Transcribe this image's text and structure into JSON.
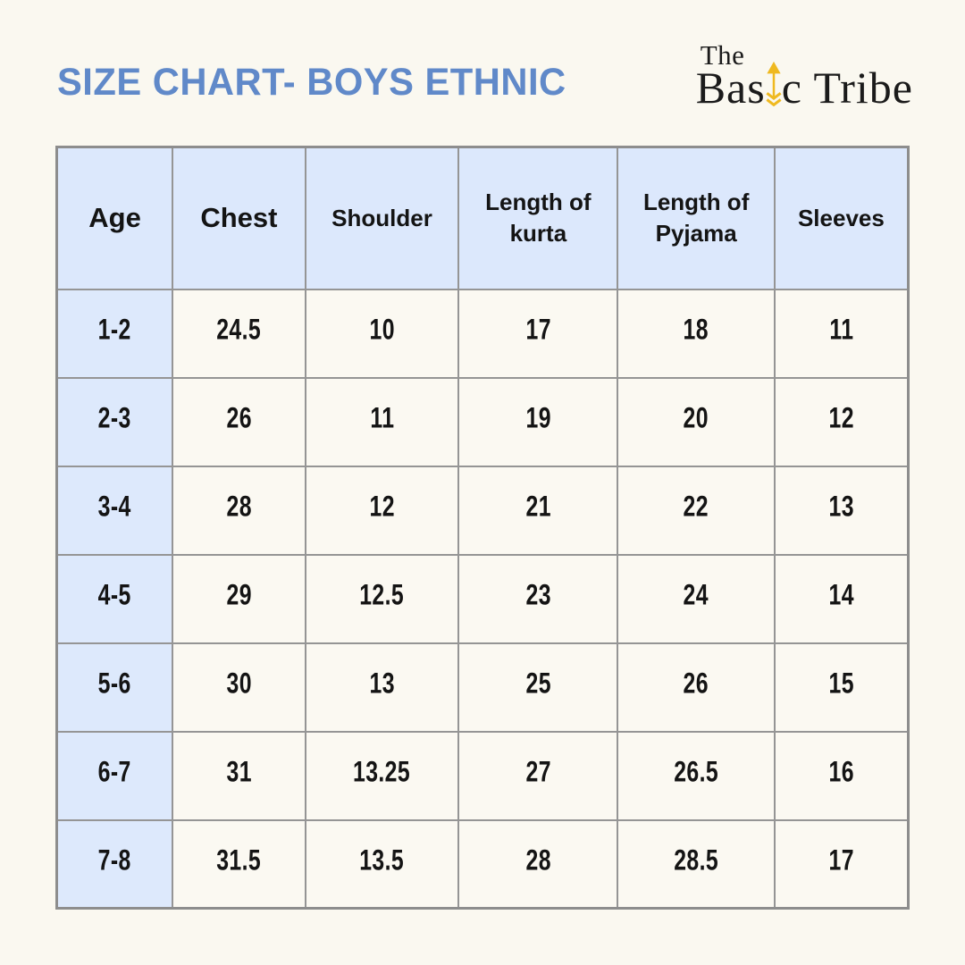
{
  "colors": {
    "page-bg": "#faf8f0",
    "title": "#6089c9",
    "header-blue": "#dce8fc",
    "age-blue": "#dde9fc",
    "cell-bg": "#fbf9f2",
    "border": "#959595",
    "border-outer": "#8d8d8d",
    "text": "#141414",
    "logo-black": "#1b1b1b",
    "arrow-gold": "#efb920"
  },
  "header": {
    "title": "SIZE CHART- BOYS ETHNIC",
    "logo": {
      "top": "The",
      "main_pre": "Bas",
      "main_post": "c Tribe"
    }
  },
  "chart_data": {
    "type": "table",
    "title": "SIZE CHART- BOYS ETHNIC",
    "columns": [
      "Age",
      "Chest",
      "Shoulder",
      "Length of kurta",
      "Length of Pyjama",
      "Sleeves"
    ],
    "rows": [
      [
        "1-2",
        "24.5",
        "10",
        "17",
        "18",
        "11"
      ],
      [
        "2-3",
        "26",
        "11",
        "19",
        "20",
        "12"
      ],
      [
        "3-4",
        "28",
        "12",
        "21",
        "22",
        "13"
      ],
      [
        "4-5",
        "29",
        "12.5",
        "23",
        "24",
        "14"
      ],
      [
        "5-6",
        "30",
        "13",
        "25",
        "26",
        "15"
      ],
      [
        "6-7",
        "31",
        "13.25",
        "27",
        "26.5",
        "16"
      ],
      [
        "7-8",
        "31.5",
        "13.5",
        "28",
        "28.5",
        "17"
      ]
    ]
  }
}
